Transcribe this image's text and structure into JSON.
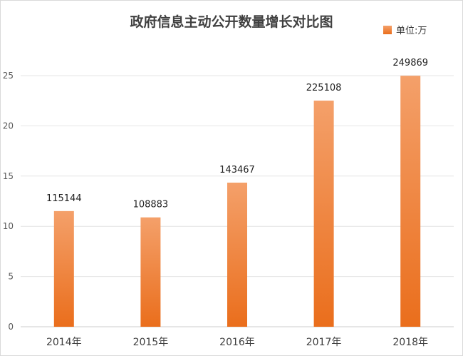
{
  "chart_data": {
    "type": "bar",
    "title": "政府信息主动公开数量增长对比图",
    "legend": {
      "label": "单位:万",
      "placement": "top-right"
    },
    "categories": [
      "2014年",
      "2015年",
      "2016年",
      "2017年",
      "2018年"
    ],
    "series": [
      {
        "values": [
          11.5144,
          10.8883,
          14.3467,
          22.5108,
          24.9869
        ],
        "data_labels": [
          "115144",
          "108883",
          "143467",
          "225108",
          "249869"
        ]
      }
    ],
    "ylim": [
      0,
      25
    ],
    "yticks": [
      0,
      5,
      10,
      15,
      20,
      25
    ],
    "grid": true,
    "colors": {
      "bar_top": "#f4a06a",
      "bar_bottom": "#ea6e1c"
    }
  }
}
